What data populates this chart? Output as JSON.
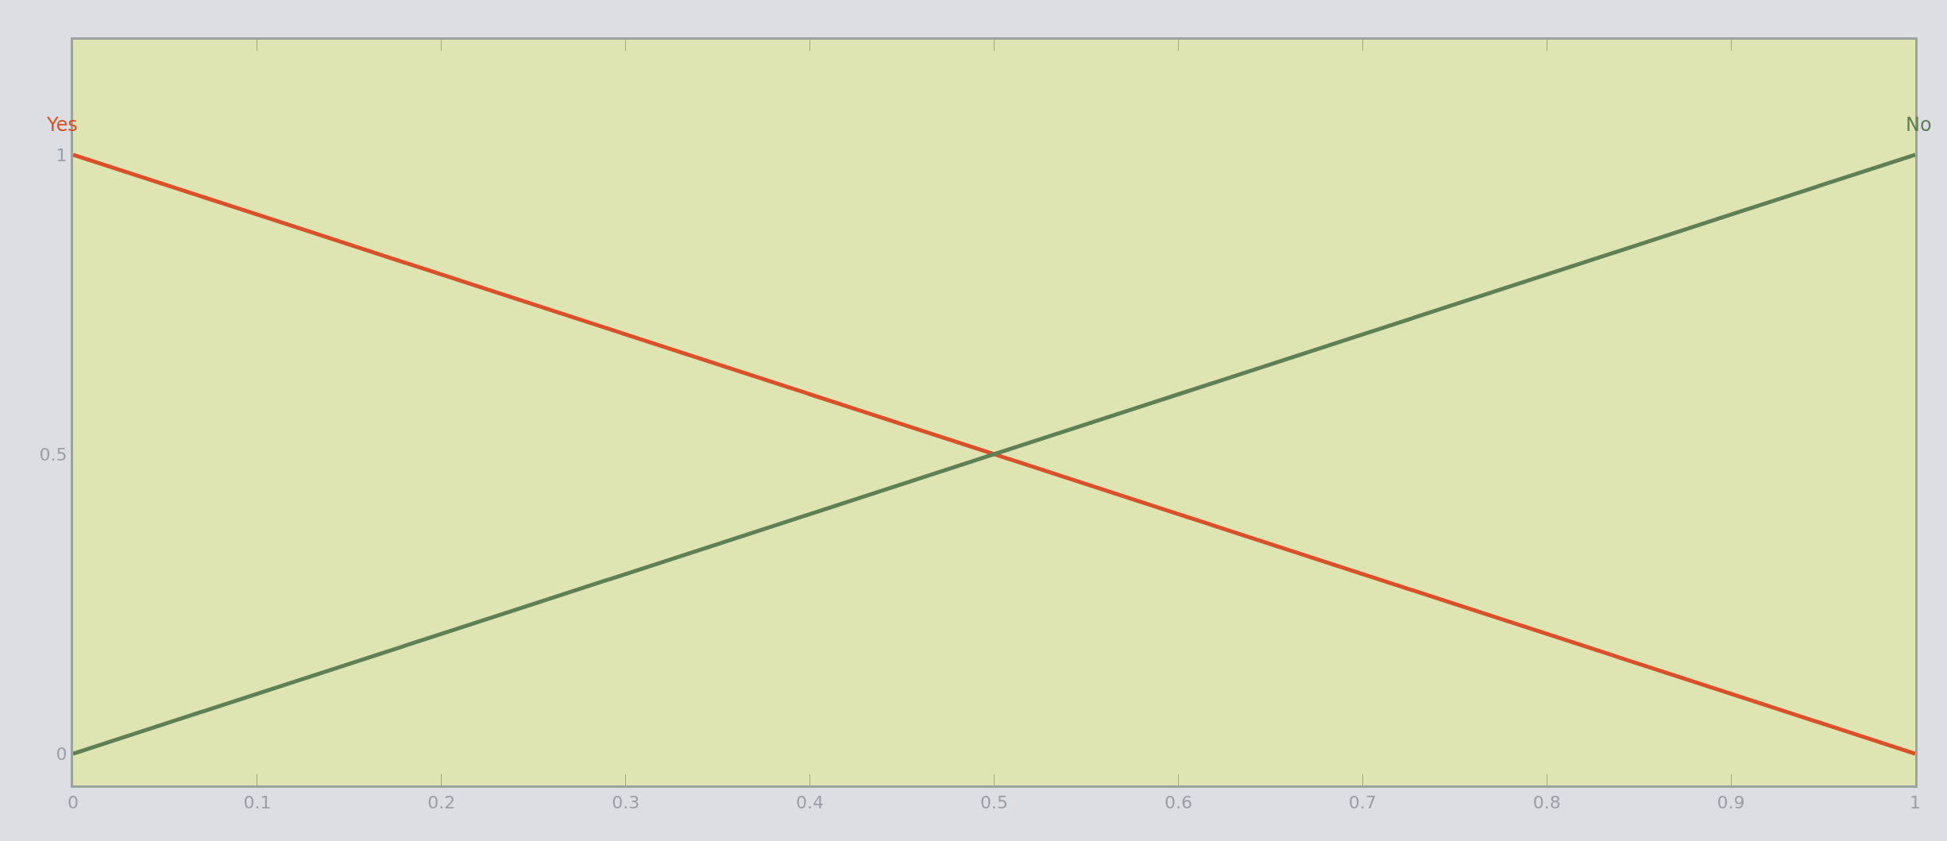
{
  "chart_data": {
    "type": "line",
    "x": [
      0,
      0.1,
      0.2,
      0.3,
      0.4,
      0.5,
      0.6,
      0.7,
      0.8,
      0.9,
      1
    ],
    "series": [
      {
        "name": "Yes",
        "color": "#d9502a",
        "values": [
          1,
          0.9,
          0.8,
          0.7,
          0.6,
          0.5,
          0.4,
          0.3,
          0.2,
          0.1,
          0
        ]
      },
      {
        "name": "No",
        "color": "#5f7f55",
        "values": [
          0,
          0.1,
          0.2,
          0.3,
          0.4,
          0.5,
          0.6,
          0.7,
          0.8,
          0.9,
          1
        ]
      }
    ],
    "xlim": [
      0,
      1
    ],
    "xticks": [
      0,
      0.1,
      0.2,
      0.3,
      0.4,
      0.5,
      0.6,
      0.7,
      0.8,
      0.9,
      1
    ],
    "ylim": [
      -0.053,
      1.192
    ],
    "yticks": [
      0,
      0.5,
      1
    ],
    "grid": false,
    "legend": false
  }
}
